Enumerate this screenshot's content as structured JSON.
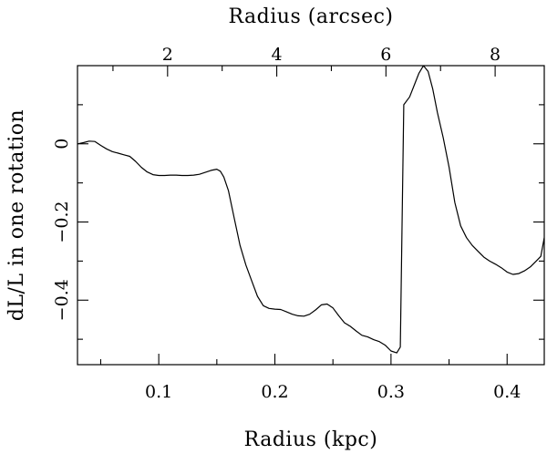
{
  "chart_data": {
    "type": "line",
    "title": "",
    "xlabel": "Radius (kpc)",
    "x2label": "Radius (arcsec)",
    "ylabel": "dL/L in one rotation",
    "xlim": [
      0.03,
      0.432
    ],
    "ylim": [
      -0.565,
      0.2
    ],
    "x2lim": [
      0.35,
      8.9
    ],
    "x_ticks": [
      {
        "value": 0.1,
        "label": "0.1"
      },
      {
        "value": 0.2,
        "label": "0.2"
      },
      {
        "value": 0.3,
        "label": "0.3"
      },
      {
        "value": 0.4,
        "label": "0.4"
      }
    ],
    "x_minor_ticks": [
      0.05,
      0.15,
      0.25,
      0.35
    ],
    "x2_ticks": [
      {
        "value": 2,
        "label": "2"
      },
      {
        "value": 4,
        "label": "4"
      },
      {
        "value": 6,
        "label": "6"
      },
      {
        "value": 8,
        "label": "8"
      }
    ],
    "x2_minor_ticks": [
      1,
      3,
      5,
      7
    ],
    "y_ticks": [
      {
        "value": 0,
        "label": "0"
      },
      {
        "value": -0.2,
        "label": "−0.2"
      },
      {
        "value": -0.4,
        "label": "−0.4"
      }
    ],
    "y_minor_ticks": [
      0.1,
      -0.1,
      -0.3,
      -0.5
    ],
    "grid": false,
    "legend": "none",
    "series": [
      {
        "x": [
          0.03,
          0.035,
          0.04,
          0.045,
          0.05,
          0.055,
          0.06,
          0.065,
          0.07,
          0.075,
          0.08,
          0.085,
          0.09,
          0.095,
          0.1,
          0.105,
          0.11,
          0.115,
          0.12,
          0.125,
          0.13,
          0.135,
          0.14,
          0.145,
          0.15,
          0.153,
          0.156,
          0.16,
          0.165,
          0.17,
          0.175,
          0.18,
          0.185,
          0.19,
          0.195,
          0.2,
          0.205,
          0.21,
          0.215,
          0.22,
          0.225,
          0.23,
          0.235,
          0.24,
          0.245,
          0.25,
          0.255,
          0.26,
          0.265,
          0.27,
          0.275,
          0.28,
          0.285,
          0.29,
          0.295,
          0.3,
          0.305,
          0.308,
          0.311,
          0.316,
          0.32,
          0.324,
          0.328,
          0.332,
          0.336,
          0.34,
          0.345,
          0.35,
          0.355,
          0.36,
          0.365,
          0.37,
          0.375,
          0.38,
          0.385,
          0.39,
          0.395,
          0.4,
          0.405,
          0.41,
          0.415,
          0.42,
          0.425,
          0.429,
          0.432
        ],
        "y": [
          0.0,
          0.003,
          0.007,
          0.006,
          -0.004,
          -0.013,
          -0.02,
          -0.024,
          -0.028,
          -0.032,
          -0.045,
          -0.06,
          -0.072,
          -0.079,
          -0.081,
          -0.081,
          -0.08,
          -0.08,
          -0.081,
          -0.081,
          -0.08,
          -0.078,
          -0.073,
          -0.068,
          -0.065,
          -0.07,
          -0.085,
          -0.12,
          -0.19,
          -0.26,
          -0.31,
          -0.35,
          -0.39,
          -0.414,
          -0.421,
          -0.423,
          -0.424,
          -0.43,
          -0.436,
          -0.44,
          -0.441,
          -0.436,
          -0.425,
          -0.412,
          -0.41,
          -0.42,
          -0.44,
          -0.458,
          -0.467,
          -0.479,
          -0.49,
          -0.494,
          -0.501,
          -0.506,
          -0.515,
          -0.53,
          -0.535,
          -0.52,
          0.1,
          0.12,
          0.15,
          0.18,
          0.2,
          0.185,
          0.14,
          0.08,
          0.015,
          -0.06,
          -0.15,
          -0.21,
          -0.24,
          -0.26,
          -0.275,
          -0.29,
          -0.3,
          -0.308,
          -0.317,
          -0.328,
          -0.334,
          -0.332,
          -0.325,
          -0.315,
          -0.3,
          -0.288,
          -0.24
        ]
      }
    ]
  }
}
